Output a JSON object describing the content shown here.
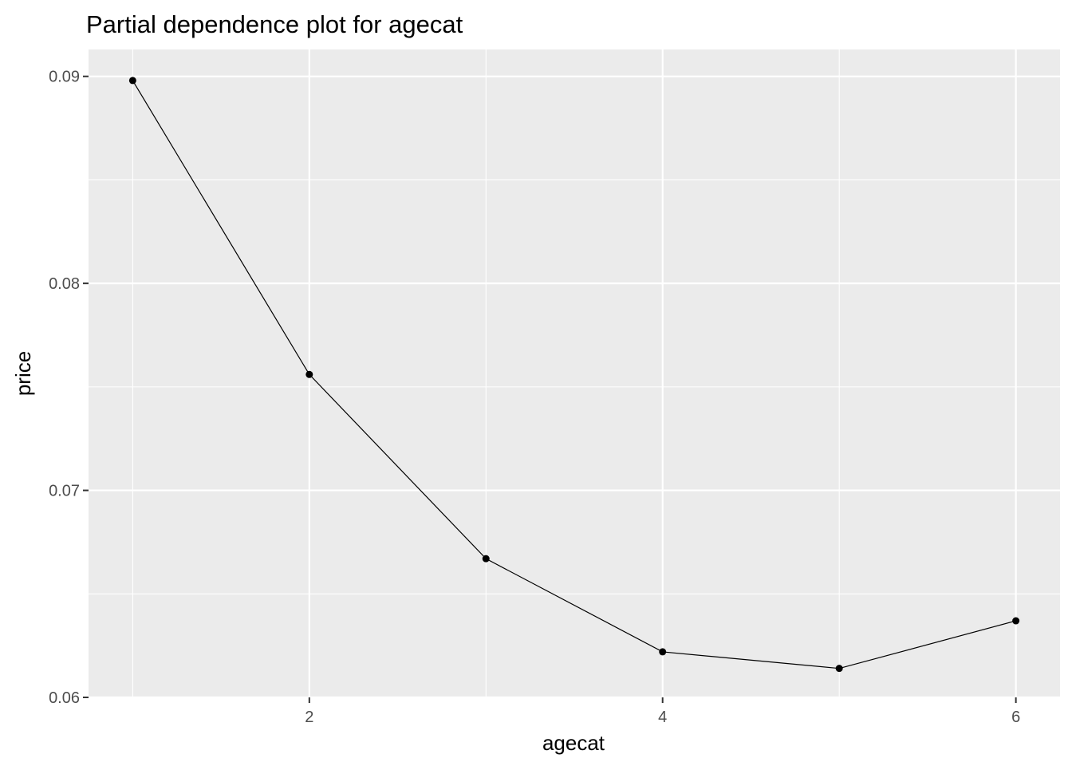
{
  "chart_data": {
    "type": "line",
    "title": "Partial dependence plot for agecat",
    "xlabel": "agecat",
    "ylabel": "price",
    "x": [
      1,
      2,
      3,
      4,
      5,
      6
    ],
    "y": [
      0.0898,
      0.0756,
      0.0667,
      0.0622,
      0.0614,
      0.0637
    ],
    "xlim": [
      0.75,
      6.25
    ],
    "ylim": [
      0.06,
      0.0913
    ],
    "x_ticks": [
      2,
      4,
      6
    ],
    "x_tick_labels": [
      "2",
      "4",
      "6"
    ],
    "y_ticks": [
      0.06,
      0.07,
      0.08,
      0.09
    ],
    "y_tick_labels": [
      "0.06",
      "0.07",
      "0.08",
      "0.09"
    ],
    "grid": true,
    "markers": true,
    "colors": {
      "panel": "#ebebeb",
      "grid": "#ffffff",
      "line": "#000000"
    }
  }
}
